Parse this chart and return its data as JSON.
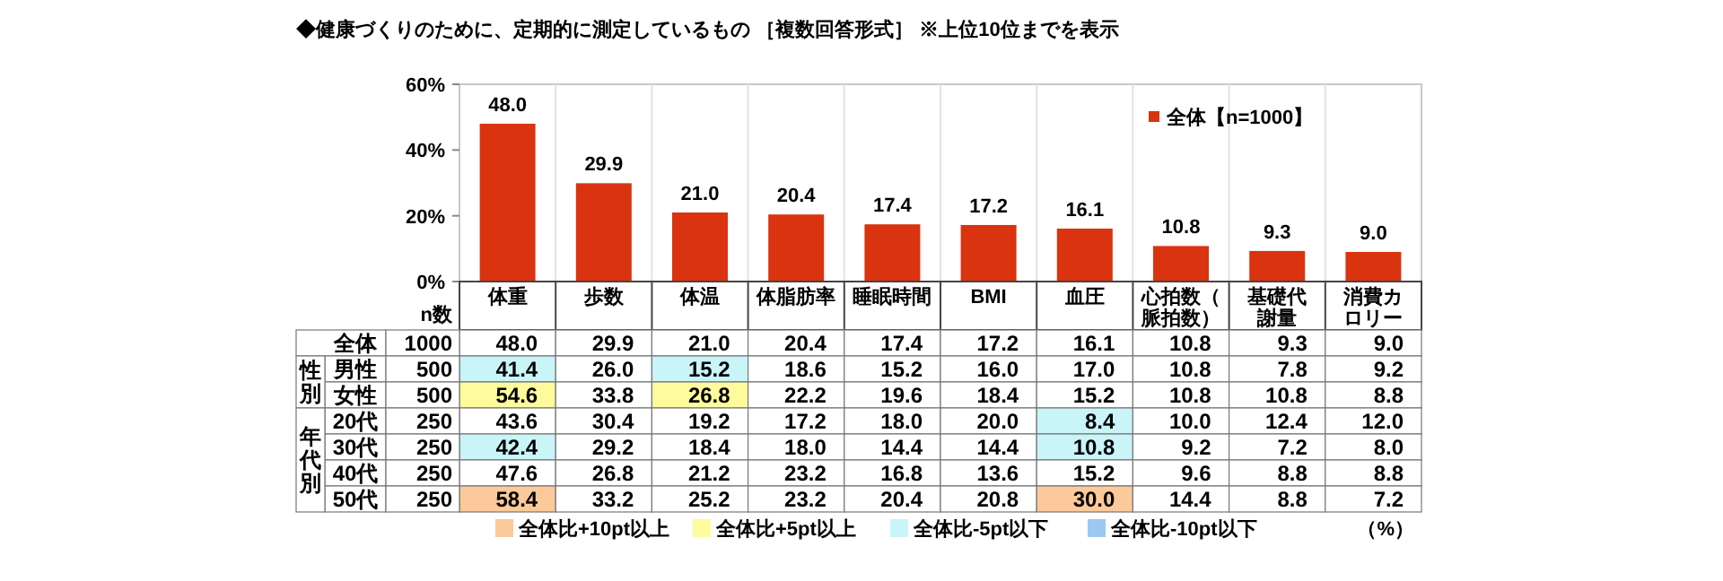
{
  "chart_data": [
    {
      "type": "bar",
      "title": "◆健康づくりのために、定期的に測定しているもの ［複数回答形式］ ※上位10位までを表示",
      "categories": [
        "体重",
        "歩数",
        "体温",
        "体脂肪率",
        "睡眠時間",
        "BMI",
        "血圧",
        "心拍数（脈拍数）",
        "基礎代謝量",
        "消費カロリー"
      ],
      "series": [
        {
          "name": "全体【n=1000】",
          "color": "#d9330f",
          "values": [
            48.0,
            29.9,
            21.0,
            20.4,
            17.4,
            17.2,
            16.1,
            10.8,
            9.3,
            9.0
          ],
          "value_labels": [
            "48.0",
            "29.9",
            "21.0",
            "20.4",
            "17.4",
            "17.2",
            "16.1",
            "10.8",
            "9.3",
            "9.0"
          ]
        }
      ],
      "ylim": [
        0,
        60
      ],
      "yticks": [
        {
          "value": 0,
          "label": "0%"
        },
        {
          "value": 20,
          "label": "20%"
        },
        {
          "value": 40,
          "label": "40%"
        },
        {
          "value": 60,
          "label": "60%"
        }
      ],
      "legend": "top right"
    },
    {
      "type": "heatmap",
      "categories": [
        null,
        null,
        null,
        null,
        null,
        null,
        null,
        null,
        null,
        null
      ],
      "y_categories": [
        "全体",
        "男性",
        "女性",
        "20代",
        "30代",
        "40代",
        "50代"
      ],
      "y2_categories": [
        "1000",
        "500",
        "500",
        "250",
        "250",
        "250",
        "250"
      ],
      "cells": [
        [
          48.0,
          29.9,
          21.0,
          20.4,
          17.4,
          17.2,
          16.1,
          10.8,
          9.3,
          9.0
        ],
        [
          41.4,
          26.0,
          15.2,
          18.6,
          15.2,
          16.0,
          17.0,
          10.8,
          7.8,
          9.2
        ],
        [
          54.6,
          33.8,
          26.8,
          22.2,
          19.6,
          18.4,
          15.2,
          10.8,
          10.8,
          8.8
        ],
        [
          43.6,
          30.4,
          19.2,
          17.2,
          18.0,
          20.0,
          8.4,
          10.0,
          12.4,
          12.0
        ],
        [
          42.4,
          29.2,
          18.4,
          18.0,
          14.4,
          14.4,
          10.8,
          9.2,
          7.2,
          8.0
        ],
        [
          47.6,
          26.8,
          21.2,
          23.2,
          16.8,
          13.6,
          15.2,
          9.6,
          8.8,
          8.8
        ],
        [
          58.4,
          33.2,
          25.2,
          23.2,
          20.4,
          20.8,
          30.0,
          14.4,
          8.8,
          7.2
        ]
      ],
      "cell_labels": [
        [
          "48.0",
          "29.9",
          "21.0",
          "20.4",
          "17.4",
          "17.2",
          "16.1",
          "10.8",
          "9.3",
          "9.0"
        ],
        [
          "41.4",
          "26.0",
          "15.2",
          "18.6",
          "15.2",
          "16.0",
          "17.0",
          "10.8",
          "7.8",
          "9.2"
        ],
        [
          "54.6",
          "33.8",
          "26.8",
          "22.2",
          "19.6",
          "18.4",
          "15.2",
          "10.8",
          "10.8",
          "8.8"
        ],
        [
          "43.6",
          "30.4",
          "19.2",
          "17.2",
          "18.0",
          "20.0",
          "8.4",
          "10.0",
          "12.4",
          "12.0"
        ],
        [
          "42.4",
          "29.2",
          "18.4",
          "18.0",
          "14.4",
          "14.4",
          "10.8",
          "9.2",
          "7.2",
          "8.0"
        ],
        [
          "47.6",
          "26.8",
          "21.2",
          "23.2",
          "16.8",
          "13.6",
          "15.2",
          "9.6",
          "8.8",
          "8.8"
        ],
        [
          "58.4",
          "33.2",
          "25.2",
          "23.2",
          "20.4",
          "20.8",
          "30.0",
          "14.4",
          "8.8",
          "7.2"
        ]
      ],
      "annotations": [
        "n数",
        "性別",
        "年代別",
        "（%）",
        "全体比+10pt以上",
        "全体比+5pt以上",
        "全体比-5pt以下",
        "全体比-10pt以下"
      ]
    }
  ]
}
